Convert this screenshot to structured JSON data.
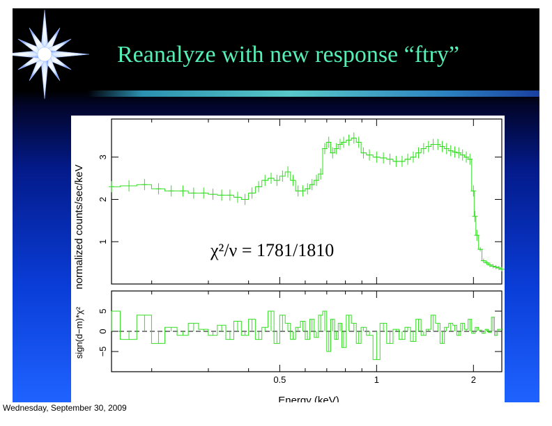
{
  "slide": {
    "title": "Reanalyze with new response “ftry”",
    "footer_date": "Wednesday, September 30, 2009",
    "star_icon": "star-icon",
    "colors": {
      "title": "#56f0b6",
      "data": "#33dd22",
      "background_top": "#000000",
      "background_bottom": "#1f63ff"
    }
  },
  "chart_data": [
    {
      "type": "line",
      "panel": "spectrum",
      "ylabel": "normalized counts/sec/keV",
      "xlabel": "",
      "x_scale": "log",
      "xlim": [
        0.15,
        2.45
      ],
      "ylim": [
        0.0,
        3.9
      ],
      "yticks": [
        1,
        2,
        3
      ],
      "annotation": "χ²/ν = 1781/1810",
      "series": [
        {
          "x": [
            0.15,
            0.17,
            0.19,
            0.21,
            0.23,
            0.25,
            0.27,
            0.29,
            0.31,
            0.33,
            0.35,
            0.37,
            0.39,
            0.41,
            0.43,
            0.45,
            0.47,
            0.49,
            0.51,
            0.53,
            0.55,
            0.57,
            0.59,
            0.61,
            0.63,
            0.65,
            0.67,
            0.69,
            0.71,
            0.73,
            0.75,
            0.77,
            0.79,
            0.82,
            0.85,
            0.88,
            0.91,
            0.95,
            1.0,
            1.05,
            1.1,
            1.15,
            1.2,
            1.25,
            1.3,
            1.35,
            1.4,
            1.45,
            1.5,
            1.55,
            1.6,
            1.65,
            1.7,
            1.75,
            1.8,
            1.85,
            1.9,
            1.95,
            2.0,
            2.02,
            2.05,
            2.1,
            2.15,
            2.2,
            2.25,
            2.3,
            2.35,
            2.4,
            2.45
          ],
          "y": [
            2.3,
            2.32,
            2.35,
            2.25,
            2.2,
            2.2,
            2.15,
            2.15,
            2.12,
            2.1,
            2.1,
            2.05,
            2.0,
            2.15,
            2.3,
            2.45,
            2.5,
            2.45,
            2.55,
            2.65,
            2.45,
            2.2,
            2.2,
            2.25,
            2.35,
            2.45,
            2.6,
            3.2,
            3.35,
            3.1,
            3.2,
            3.3,
            3.35,
            3.4,
            3.45,
            3.35,
            3.1,
            3.05,
            3.0,
            2.98,
            2.95,
            2.9,
            2.9,
            2.95,
            3.0,
            3.1,
            3.2,
            3.25,
            3.3,
            3.3,
            3.25,
            3.2,
            3.15,
            3.12,
            3.1,
            3.05,
            3.0,
            2.95,
            2.2,
            1.6,
            1.15,
            0.82,
            0.55,
            0.5,
            0.45,
            0.42,
            0.4,
            0.38,
            0.35
          ]
        }
      ]
    },
    {
      "type": "line",
      "panel": "residuals",
      "ylabel": "sign(d−m)*χ²",
      "xlabel": "Energy (keV)",
      "x_scale": "log",
      "xlim": [
        0.15,
        2.45
      ],
      "ylim": [
        -10,
        10
      ],
      "yticks": [
        -5,
        0,
        5
      ],
      "xticks": [
        0.5,
        1,
        2
      ],
      "series": [
        {
          "x": [
            0.15,
            0.17,
            0.19,
            0.21,
            0.23,
            0.25,
            0.27,
            0.29,
            0.31,
            0.33,
            0.35,
            0.37,
            0.39,
            0.41,
            0.43,
            0.45,
            0.47,
            0.49,
            0.51,
            0.53,
            0.55,
            0.57,
            0.59,
            0.61,
            0.63,
            0.65,
            0.67,
            0.69,
            0.71,
            0.73,
            0.75,
            0.77,
            0.79,
            0.82,
            0.85,
            0.88,
            0.91,
            0.95,
            1.0,
            1.05,
            1.1,
            1.15,
            1.2,
            1.25,
            1.3,
            1.35,
            1.4,
            1.45,
            1.5,
            1.55,
            1.6,
            1.65,
            1.7,
            1.75,
            1.8,
            1.85,
            1.9,
            1.95,
            2.0,
            2.05,
            2.1,
            2.15,
            2.2,
            2.25,
            2.3,
            2.35,
            2.4
          ],
          "y": [
            5,
            -2,
            4,
            -3,
            1,
            -1,
            2,
            0.5,
            -1,
            1.5,
            -2,
            2.5,
            -1,
            3,
            -2,
            1,
            5,
            -3,
            4,
            2,
            -2,
            1,
            2.5,
            -2,
            3,
            -1.5,
            4,
            5,
            -5,
            3,
            -2,
            2,
            -4,
            4,
            2,
            -3,
            1,
            -1,
            -7,
            2,
            -3,
            0.5,
            -2,
            1,
            -2.5,
            3,
            -1,
            0.5,
            4,
            2,
            -3,
            1,
            2,
            1.5,
            -1,
            2,
            0.5,
            3,
            -0.5,
            1,
            0.3,
            -0.5,
            0.5,
            -0.3,
            3.5,
            -1,
            0.5
          ]
        }
      ]
    }
  ]
}
